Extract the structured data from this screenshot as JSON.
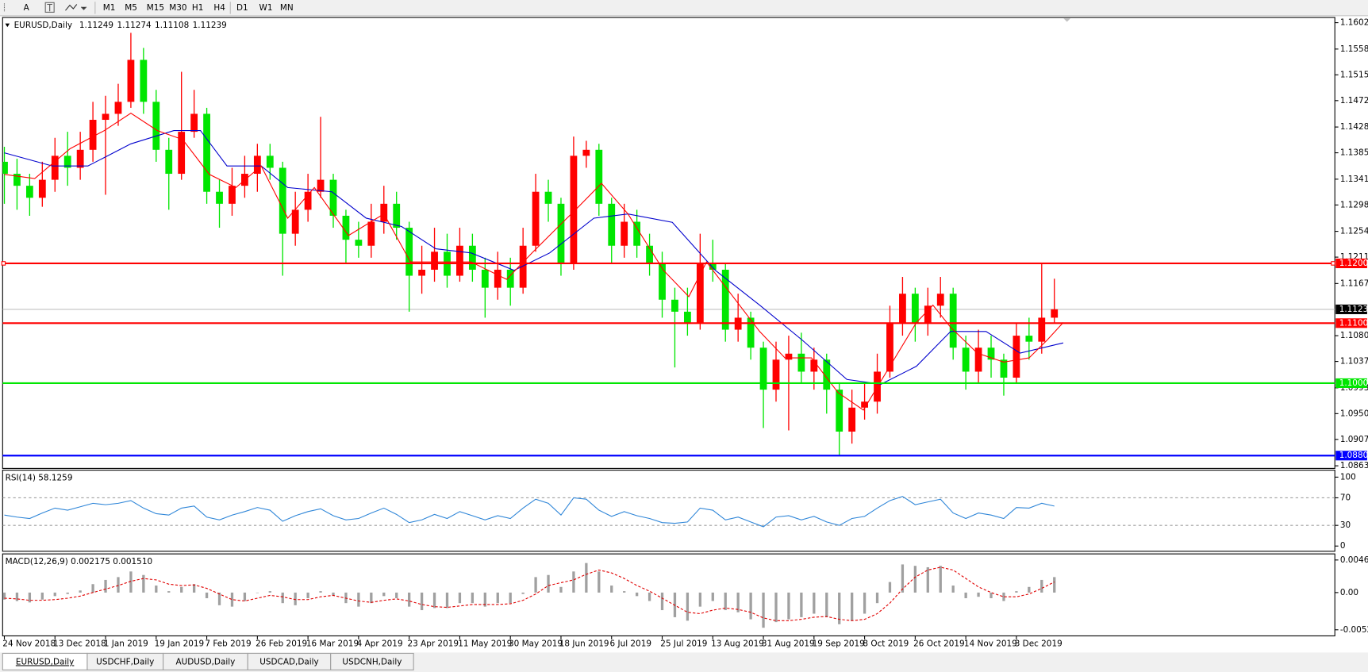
{
  "toolbar": {
    "text_tool": "A",
    "timeframes": [
      "M1",
      "M5",
      "M15",
      "M30",
      "H1",
      "H4",
      "D1",
      "W1",
      "MN"
    ]
  },
  "tabs": [
    "EURUSD,Daily",
    "USDCHF,Daily",
    "AUDUSD,Daily",
    "USDCAD,Daily",
    "USDCNH,Daily"
  ],
  "chart_data": [
    {
      "type": "candlestick",
      "title": "EURUSD,Daily",
      "ohlc": [
        1.11249,
        1.11274,
        1.11108,
        1.11239
      ],
      "categories": [
        "24 Nov 2018",
        null,
        null,
        null,
        "13 Dec 2018",
        null,
        null,
        null,
        "1 Jan 2019",
        null,
        null,
        null,
        "19 Jan 2019",
        null,
        null,
        null,
        "7 Feb 2019",
        null,
        null,
        null,
        "26 Feb 2019",
        null,
        null,
        null,
        "16 Mar 2019",
        null,
        null,
        null,
        "4 Apr 2019",
        null,
        null,
        null,
        "23 Apr 2019",
        null,
        null,
        null,
        "11 May 2019",
        null,
        null,
        null,
        "30 May 2019",
        null,
        null,
        null,
        "18 Jun 2019",
        null,
        null,
        null,
        "6 Jul 2019",
        null,
        null,
        null,
        "25 Jul 2019",
        null,
        null,
        null,
        "13 Aug 2019",
        null,
        null,
        null,
        "31 Aug 2019",
        null,
        null,
        null,
        "19 Sep 2019",
        null,
        null,
        null,
        "8 Oct 2019",
        null,
        null,
        null,
        "26 Oct 2019",
        null,
        null,
        null,
        "14 Nov 2019",
        null,
        null,
        null,
        "3 Dec 2019",
        null,
        null,
        null
      ],
      "candles": [
        [
          1.137,
          1.1395,
          1.13,
          1.135
        ],
        [
          1.135,
          1.1375,
          1.129,
          1.133
        ],
        [
          1.133,
          1.135,
          1.128,
          1.131
        ],
        [
          1.131,
          1.137,
          1.1295,
          1.134
        ],
        [
          1.134,
          1.141,
          1.132,
          1.138
        ],
        [
          1.138,
          1.142,
          1.133,
          1.136
        ],
        [
          1.136,
          1.142,
          1.134,
          1.139
        ],
        [
          1.139,
          1.147,
          1.137,
          1.144
        ],
        [
          1.144,
          1.148,
          1.1315,
          1.145
        ],
        [
          1.145,
          1.15,
          1.143,
          1.147
        ],
        [
          1.147,
          1.1585,
          1.146,
          1.154
        ],
        [
          1.154,
          1.156,
          1.145,
          1.147
        ],
        [
          1.147,
          1.149,
          1.137,
          1.139
        ],
        [
          1.139,
          1.141,
          1.129,
          1.135
        ],
        [
          1.135,
          1.152,
          1.134,
          1.142
        ],
        [
          1.142,
          1.149,
          1.141,
          1.145
        ],
        [
          1.145,
          1.146,
          1.13,
          1.132
        ],
        [
          1.132,
          1.134,
          1.126,
          1.13
        ],
        [
          1.13,
          1.136,
          1.128,
          1.133
        ],
        [
          1.133,
          1.138,
          1.131,
          1.135
        ],
        [
          1.135,
          1.14,
          1.132,
          1.138
        ],
        [
          1.138,
          1.14,
          1.134,
          1.136
        ],
        [
          1.136,
          1.137,
          1.118,
          1.125
        ],
        [
          1.125,
          1.132,
          1.123,
          1.129
        ],
        [
          1.129,
          1.135,
          1.127,
          1.132
        ],
        [
          1.132,
          1.1445,
          1.131,
          1.134
        ],
        [
          1.134,
          1.135,
          1.126,
          1.128
        ],
        [
          1.128,
          1.129,
          1.12,
          1.124
        ],
        [
          1.124,
          1.127,
          1.121,
          1.123
        ],
        [
          1.123,
          1.13,
          1.121,
          1.127
        ],
        [
          1.127,
          1.133,
          1.125,
          1.13
        ],
        [
          1.13,
          1.132,
          1.124,
          1.126
        ],
        [
          1.126,
          1.127,
          1.112,
          1.118
        ],
        [
          1.118,
          1.123,
          1.115,
          1.119
        ],
        [
          1.119,
          1.126,
          1.117,
          1.122
        ],
        [
          1.122,
          1.125,
          1.116,
          1.118
        ],
        [
          1.118,
          1.126,
          1.117,
          1.123
        ],
        [
          1.123,
          1.125,
          1.117,
          1.119
        ],
        [
          1.119,
          1.121,
          1.111,
          1.116
        ],
        [
          1.116,
          1.122,
          1.114,
          1.119
        ],
        [
          1.119,
          1.121,
          1.113,
          1.116
        ],
        [
          1.116,
          1.126,
          1.115,
          1.123
        ],
        [
          1.123,
          1.135,
          1.122,
          1.132
        ],
        [
          1.132,
          1.134,
          1.127,
          1.13
        ],
        [
          1.13,
          1.131,
          1.118,
          1.12
        ],
        [
          1.12,
          1.1412,
          1.119,
          1.138
        ],
        [
          1.138,
          1.1405,
          1.136,
          1.139
        ],
        [
          1.139,
          1.14,
          1.128,
          1.13
        ],
        [
          1.13,
          1.131,
          1.12,
          1.123
        ],
        [
          1.123,
          1.13,
          1.121,
          1.127
        ],
        [
          1.127,
          1.129,
          1.121,
          1.123
        ],
        [
          1.123,
          1.125,
          1.118,
          1.12
        ],
        [
          1.12,
          1.122,
          1.111,
          1.114
        ],
        [
          1.114,
          1.116,
          1.1027,
          1.112
        ],
        [
          1.112,
          1.116,
          1.108,
          1.11
        ],
        [
          1.11,
          1.125,
          1.109,
          1.12
        ],
        [
          1.12,
          1.124,
          1.117,
          1.119
        ],
        [
          1.119,
          1.12,
          1.107,
          1.109
        ],
        [
          1.109,
          1.115,
          1.107,
          1.111
        ],
        [
          1.111,
          1.112,
          1.104,
          1.106
        ],
        [
          1.106,
          1.107,
          1.0926,
          1.099
        ],
        [
          1.099,
          1.107,
          1.097,
          1.104
        ],
        [
          1.104,
          1.108,
          1.0922,
          1.105
        ],
        [
          1.105,
          1.1085,
          1.1,
          1.102
        ],
        [
          1.102,
          1.106,
          1.099,
          1.104
        ],
        [
          1.104,
          1.105,
          1.095,
          1.099
        ],
        [
          1.099,
          1.1,
          1.0879,
          1.092
        ],
        [
          1.092,
          1.099,
          1.09,
          1.096
        ],
        [
          1.096,
          1.1,
          1.094,
          1.097
        ],
        [
          1.097,
          1.105,
          1.095,
          1.102
        ],
        [
          1.102,
          1.113,
          1.101,
          1.11
        ],
        [
          1.11,
          1.1178,
          1.108,
          1.115
        ],
        [
          1.115,
          1.116,
          1.107,
          1.11
        ],
        [
          1.11,
          1.116,
          1.108,
          1.113
        ],
        [
          1.113,
          1.1178,
          1.111,
          1.115
        ],
        [
          1.115,
          1.116,
          1.104,
          1.106
        ],
        [
          1.106,
          1.108,
          1.099,
          1.102
        ],
        [
          1.102,
          1.109,
          1.1,
          1.106
        ],
        [
          1.106,
          1.108,
          1.101,
          1.104
        ],
        [
          1.104,
          1.105,
          1.098,
          1.101
        ],
        [
          1.101,
          1.11,
          1.1,
          1.108
        ],
        [
          1.108,
          1.111,
          1.104,
          1.107
        ],
        [
          1.107,
          1.12,
          1.105,
          1.111
        ],
        [
          1.111,
          1.1175,
          1.11,
          1.1124
        ]
      ],
      "colors": {
        "up": "#ff0000",
        "down": "#00e600"
      },
      "lines": [
        {
          "color": "#0000cd",
          "x": [
            0,
            3.8,
            6.6,
            10,
            13.4,
            15.5,
            17.6,
            20.3,
            22.4,
            25.9,
            28.6,
            31.4,
            34.1,
            36.9,
            40.3,
            43.1,
            46.6,
            49.3,
            52.8,
            56.2,
            59.7,
            63.1,
            66.6,
            69.3,
            72.1,
            74.8,
            77.6,
            80.3,
            83.7
          ],
          "values": [
            1.1385,
            1.1363,
            1.1363,
            1.14,
            1.1422,
            1.1422,
            1.1363,
            1.1363,
            1.1327,
            1.132,
            1.1276,
            1.1262,
            1.1225,
            1.1218,
            1.1189,
            1.1218,
            1.1276,
            1.1283,
            1.1269,
            1.1189,
            1.1131,
            1.1072,
            1.1007,
            1.0999,
            1.1029,
            1.1087,
            1.1087,
            1.1051,
            1.1068
          ]
        },
        {
          "color": "#ff0000",
          "x": [
            0,
            2.4,
            5.2,
            7.9,
            10,
            12.1,
            14.1,
            16.2,
            18.3,
            20.3,
            22.4,
            24.5,
            27.2,
            30,
            32.1,
            34.1,
            36.9,
            39.7,
            41.7,
            43.8,
            45.2,
            47.2,
            49.3,
            52.1,
            54.1,
            55.5,
            57.6,
            59.7,
            61.7,
            63.8,
            65.9,
            67.9,
            70,
            72.1,
            73.4,
            74.8,
            76.9,
            79,
            81,
            82.4,
            83.7
          ],
          "values": [
            1.1349,
            1.1342,
            1.1392,
            1.1422,
            1.1451,
            1.1422,
            1.1407,
            1.1349,
            1.1327,
            1.1363,
            1.1276,
            1.1327,
            1.1247,
            1.1283,
            1.1203,
            1.1203,
            1.1203,
            1.1174,
            1.1218,
            1.1262,
            1.1291,
            1.1334,
            1.1283,
            1.1189,
            1.1145,
            1.1203,
            1.1145,
            1.1087,
            1.1043,
            1.1043,
            1.0985,
            1.0956,
            1.1029,
            1.1102,
            1.1131,
            1.1094,
            1.1051,
            1.1036,
            1.1043,
            1.1072,
            1.1102
          ]
        }
      ],
      "hlines": [
        {
          "value": 1.12006,
          "label": "1.12006",
          "color": "#ff0000"
        },
        {
          "value": 1.11009,
          "label": "1.11009",
          "color": "#ff0000"
        },
        {
          "value": 1.10008,
          "label": "1.10008",
          "color": "#00e600"
        },
        {
          "value": 1.088,
          "label": "1.08800",
          "color": "#0000ff"
        }
      ],
      "ylim": [
        1.0863,
        1.1602
      ],
      "yticks": [
        {
          "value": 1.1602,
          "label": "1.16020"
        },
        {
          "value": 1.1558,
          "label": "1.15580"
        },
        {
          "value": 1.1515,
          "label": "1.15150"
        },
        {
          "value": 1.1472,
          "label": "1.14720"
        },
        {
          "value": 1.1428,
          "label": "1.14280"
        },
        {
          "value": 1.1385,
          "label": "1.13850"
        },
        {
          "value": 1.1341,
          "label": "1.13410"
        },
        {
          "value": 1.1298,
          "label": "1.12980"
        },
        {
          "value": 1.1254,
          "label": "1.12540"
        },
        {
          "value": 1.1211,
          "label": "1.12110"
        },
        {
          "value": 1.1167,
          "label": "1.11670"
        },
        {
          "value": 1.108,
          "label": "1.10800"
        },
        {
          "value": 1.1037,
          "label": "1.10370"
        },
        {
          "value": 1.0993,
          "label": "1.09930"
        },
        {
          "value": 1.095,
          "label": "1.09500"
        },
        {
          "value": 1.0907,
          "label": "1.09070"
        },
        {
          "value": 1.0863,
          "label": "1.08630"
        }
      ]
    },
    {
      "type": "line",
      "title": "RSI(14) 58.1259",
      "color": "#2f86d8",
      "values": [
        45,
        42,
        40,
        48,
        55,
        52,
        57,
        62,
        60,
        62,
        66,
        55,
        47,
        45,
        55,
        58,
        42,
        38,
        45,
        50,
        56,
        52,
        36,
        44,
        50,
        54,
        44,
        38,
        40,
        48,
        55,
        46,
        34,
        38,
        46,
        40,
        50,
        44,
        38,
        44,
        40,
        55,
        68,
        62,
        45,
        70,
        68,
        52,
        43,
        50,
        44,
        40,
        34,
        33,
        35,
        55,
        52,
        38,
        42,
        35,
        28,
        42,
        44,
        38,
        43,
        35,
        30,
        40,
        43,
        55,
        66,
        72,
        60,
        64,
        68,
        48,
        40,
        48,
        45,
        40,
        56,
        55,
        62,
        58
      ],
      "ylim": [
        0,
        100
      ],
      "yticks": [
        100,
        70,
        30,
        0
      ]
    },
    {
      "type": "macd",
      "title": "MACD(12,26,9) 0.002175 0.001510",
      "color": "#a0a0a0",
      "signal_color": "#e00000",
      "values": [
        -0.001,
        -0.0012,
        -0.0014,
        -0.001,
        -0.0005,
        -0.0002,
        0.0003,
        0.0012,
        0.0018,
        0.0022,
        0.003,
        0.0025,
        0.001,
        0.0002,
        0.0008,
        0.0012,
        -0.0008,
        -0.0018,
        -0.002,
        -0.0012,
        0.0,
        0.0002,
        -0.0015,
        -0.0018,
        -0.0008,
        0.0002,
        -0.0004,
        -0.0015,
        -0.002,
        -0.0015,
        -0.0005,
        -0.0008,
        -0.002,
        -0.0025,
        -0.0022,
        -0.0022,
        -0.0015,
        -0.0015,
        -0.002,
        -0.0015,
        -0.0015,
        -0.0002,
        0.0022,
        0.0025,
        0.0008,
        0.003,
        0.0042,
        0.003,
        0.001,
        0.0002,
        -0.0005,
        -0.0012,
        -0.0025,
        -0.0035,
        -0.004,
        -0.002,
        -0.0012,
        -0.0025,
        -0.0028,
        -0.0038,
        -0.005,
        -0.0042,
        -0.0038,
        -0.0035,
        -0.003,
        -0.0035,
        -0.0045,
        -0.004,
        -0.003,
        -0.0015,
        0.0015,
        0.004,
        0.0038,
        0.0036,
        0.0038,
        0.001,
        -0.0008,
        -0.0006,
        -0.0008,
        -0.0012,
        0.0002,
        0.0008,
        0.0018,
        0.0022
      ],
      "signal": [
        -0.0008,
        -0.0009,
        -0.0011,
        -0.0011,
        -0.001,
        -0.0008,
        -0.0005,
        0.0,
        0.0005,
        0.001,
        0.0016,
        0.002,
        0.0018,
        0.0012,
        0.001,
        0.0011,
        0.0006,
        -0.0002,
        -0.001,
        -0.0012,
        -0.0008,
        -0.0004,
        -0.0006,
        -0.001,
        -0.001,
        -0.0006,
        -0.0004,
        -0.0008,
        -0.0012,
        -0.0014,
        -0.0011,
        -0.0009,
        -0.0012,
        -0.0017,
        -0.002,
        -0.0021,
        -0.0019,
        -0.0017,
        -0.0017,
        -0.0017,
        -0.0016,
        -0.0011,
        -0.0002,
        0.001,
        0.0014,
        0.0018,
        0.0026,
        0.0032,
        0.0028,
        0.002,
        0.001,
        0.0002,
        -0.0008,
        -0.0018,
        -0.0028,
        -0.003,
        -0.0025,
        -0.0022,
        -0.0024,
        -0.0028,
        -0.0036,
        -0.004,
        -0.004,
        -0.0038,
        -0.0035,
        -0.0034,
        -0.0038,
        -0.004,
        -0.0038,
        -0.003,
        -0.0015,
        0.0005,
        0.0022,
        0.0032,
        0.0036,
        0.0032,
        0.002,
        0.0008,
        0.0,
        -0.0006,
        -0.0006,
        -0.0002,
        0.0006,
        0.0015
      ],
      "ylim": [
        -0.00529,
        0.00463
      ],
      "yticks": [
        0.00463,
        {
          "value": 0,
          "label": "0.00"
        },
        -0.00529
      ]
    }
  ]
}
